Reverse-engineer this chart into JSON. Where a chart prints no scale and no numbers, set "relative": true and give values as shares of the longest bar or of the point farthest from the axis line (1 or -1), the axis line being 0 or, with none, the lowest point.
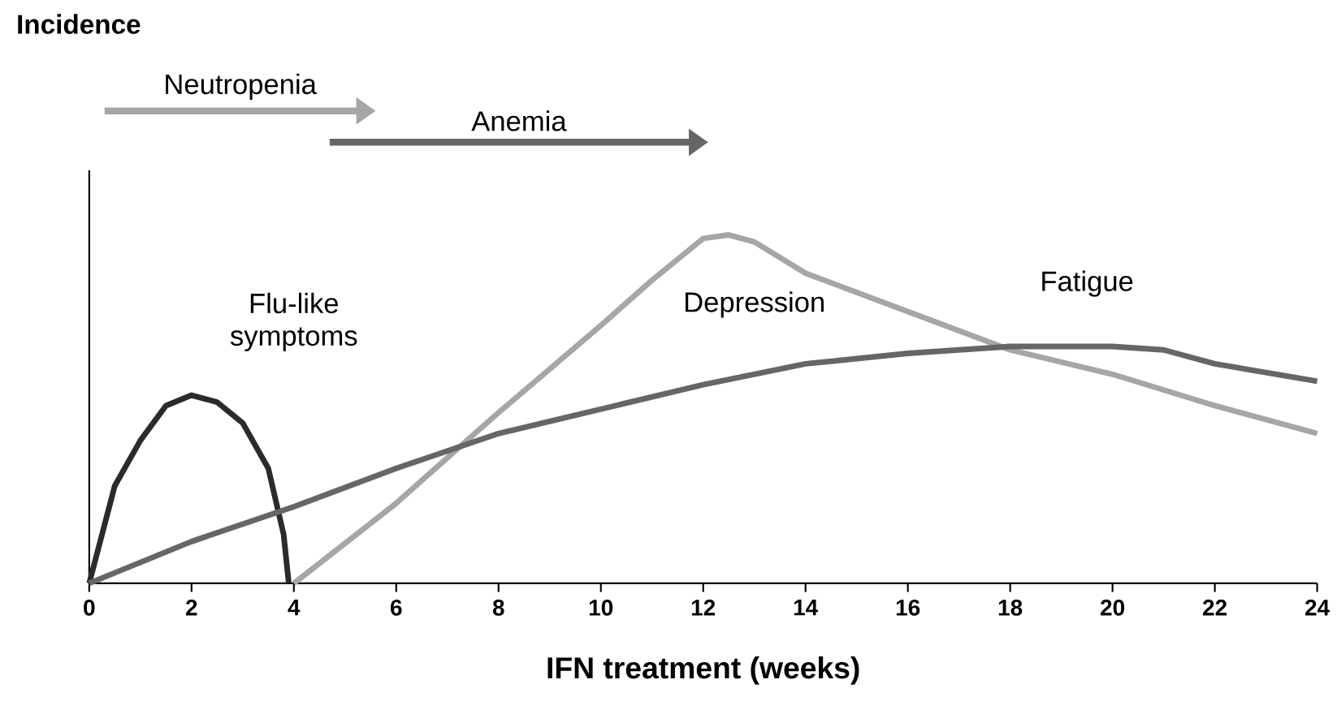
{
  "chart_data": {
    "type": "line",
    "relative": true,
    "annotations": [
      "Incidence",
      "Neutropenia",
      "Anemia"
    ],
    "xlabel": "IFN treatment  (weeks)",
    "xlim": [
      0,
      24
    ],
    "xticks": [
      0,
      2,
      4,
      6,
      8,
      10,
      12,
      14,
      16,
      18,
      20,
      22,
      24
    ],
    "line_style": "solid",
    "series": [
      {
        "name": "Flu-like symptoms",
        "color": "#2b2b2b",
        "x": [
          0,
          0.5,
          1,
          1.5,
          2,
          2.5,
          3,
          3.5,
          3.8,
          3.9
        ],
        "values": [
          0,
          0.28,
          0.41,
          0.51,
          0.54,
          0.52,
          0.46,
          0.33,
          0.14,
          0
        ]
      },
      {
        "name": "Depression",
        "color": "#a6a6a6",
        "x": [
          4,
          6,
          8,
          10,
          11,
          12,
          12.5,
          13,
          14,
          16,
          18,
          20,
          22,
          24
        ],
        "values": [
          0,
          0.23,
          0.49,
          0.74,
          0.87,
          0.99,
          1,
          0.98,
          0.89,
          0.78,
          0.67,
          0.6,
          0.51,
          0.43
        ]
      },
      {
        "name": "Fatigue",
        "color": "#666666",
        "x": [
          0,
          2,
          4,
          6,
          8,
          10,
          12,
          14,
          16,
          18,
          20,
          21,
          22,
          24
        ],
        "values": [
          0,
          0.12,
          0.22,
          0.33,
          0.43,
          0.5,
          0.57,
          0.63,
          0.66,
          0.68,
          0.68,
          0.67,
          0.63,
          0.58
        ]
      }
    ]
  }
}
